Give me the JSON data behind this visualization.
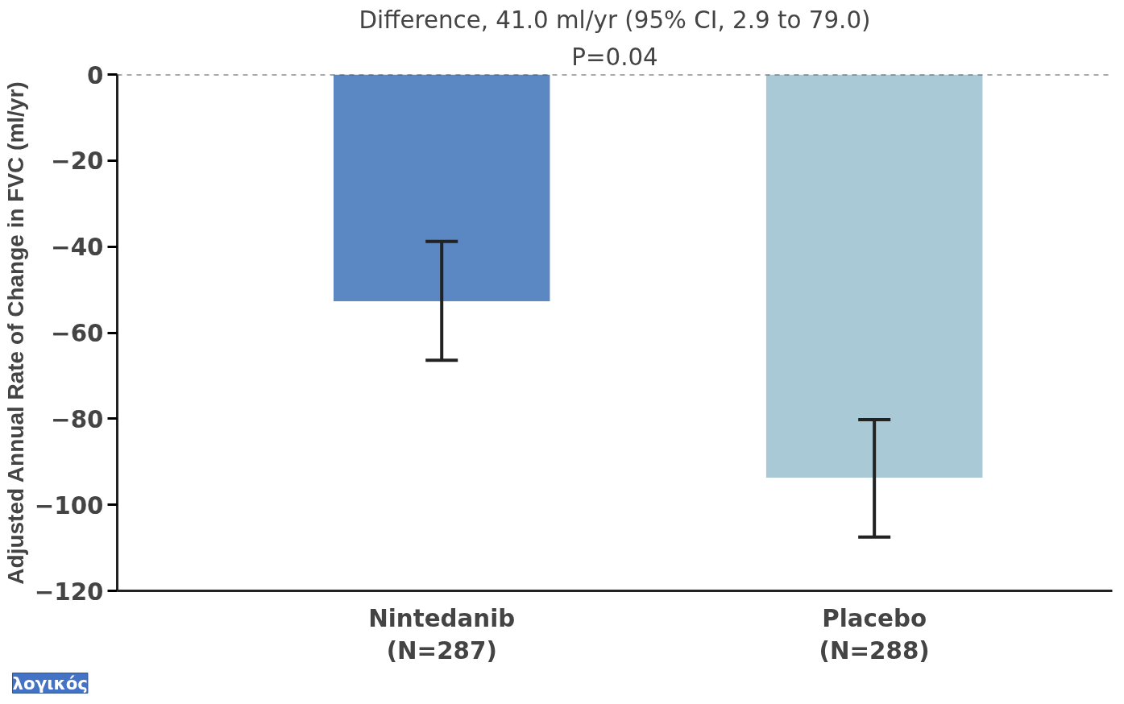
{
  "chart_data": {
    "type": "bar",
    "title": "Difference, 41.0 ml/yr (95% CI, 2.9 to 79.0)",
    "subtitle": "P=0.04",
    "ylabel": "Adjusted Annual Rate of Change in FVC (ml/yr)",
    "categories": [
      "Nintedanib\n(N=287)",
      "Placebo\n(N=288)"
    ],
    "values": [
      -52.7,
      -93.7
    ],
    "colors": [
      "#5b87c3",
      "#a9c9d7"
    ],
    "errors": [
      [
        -66.4,
        -38.8
      ],
      [
        -107.5,
        -80.2
      ]
    ],
    "ylim": [
      -120,
      0
    ],
    "yticks": [
      0,
      -20,
      -40,
      -60,
      -80,
      -100,
      -120
    ],
    "grid": false,
    "ref_lines": [
      {
        "axis": "y",
        "value": 0,
        "color": "#555555",
        "line_style": "dashed"
      }
    ],
    "annotations": [
      "λογικός"
    ]
  }
}
